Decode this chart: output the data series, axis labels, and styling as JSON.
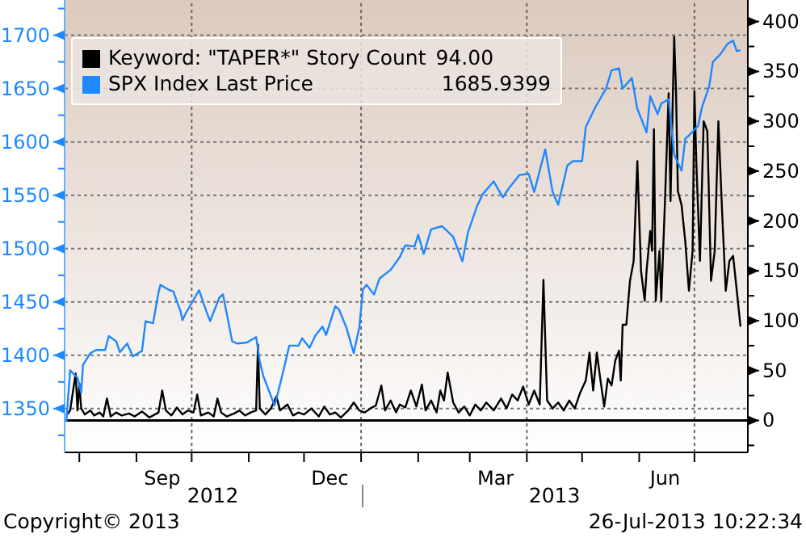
{
  "chart_data": {
    "type": "line",
    "legend": "top left",
    "grid": "y",
    "line_style": "solid",
    "marker": "none",
    "xlim": [
      "2012-07-24",
      "2013-07-30"
    ],
    "xticks": [
      {
        "value": "2012-08-01",
        "label": null
      },
      {
        "value": "2012-09-01",
        "label": null
      },
      {
        "value": "2012-09-15",
        "label": "Sep"
      },
      {
        "value": "2012-10-01",
        "label": null
      },
      {
        "value": "2012-11-01",
        "label": null
      },
      {
        "value": "2012-12-01",
        "label": null
      },
      {
        "value": "2012-12-15",
        "label": "Dec"
      },
      {
        "value": "2013-01-01",
        "label": null
      },
      {
        "value": "2013-02-01",
        "label": null
      },
      {
        "value": "2013-03-01",
        "label": null
      },
      {
        "value": "2013-03-15",
        "label": "Mar"
      },
      {
        "value": "2013-04-01",
        "label": null
      },
      {
        "value": "2013-05-01",
        "label": null
      },
      {
        "value": "2013-06-01",
        "label": null
      },
      {
        "value": "2013-06-15",
        "label": "Jun"
      },
      {
        "value": "2013-07-01",
        "label": null
      }
    ],
    "ylim": [
      1309,
      1733
    ],
    "yticks": [
      {
        "value": 1325,
        "label": null
      },
      1350,
      {
        "value": 1375,
        "label": null
      },
      1400,
      {
        "value": 1425,
        "label": null
      },
      1450,
      {
        "value": 1475,
        "label": null
      },
      1500,
      {
        "value": 1525,
        "label": null
      },
      1550,
      {
        "value": 1575,
        "label": null
      },
      1600,
      {
        "value": 1625,
        "label": null
      },
      1650,
      {
        "value": 1675,
        "label": null
      },
      1700,
      {
        "value": 1725,
        "label": null
      }
    ],
    "y2lim": [
      -32,
      421.6
    ],
    "y2ticks": [
      {
        "value": -25,
        "label": null
      },
      0,
      {
        "value": 25,
        "label": null
      },
      50,
      {
        "value": 75,
        "label": null
      },
      100,
      {
        "value": 125,
        "label": null
      },
      150,
      {
        "value": 175,
        "label": null
      },
      200,
      {
        "value": 225,
        "label": null
      },
      250,
      {
        "value": 275,
        "label": null
      },
      300,
      {
        "value": 325,
        "label": null
      },
      350,
      {
        "value": 375,
        "label": null
      },
      400
    ],
    "ref_lines": [
      {
        "axis": "x",
        "value": "2012-10-01",
        "label": null,
        "color": "#666666",
        "line_style": "dotted"
      },
      {
        "axis": "x",
        "value": "2013-01-01",
        "label": null,
        "color": "#666666",
        "line_style": "dotted"
      },
      {
        "axis": "x",
        "value": "2013-04-01",
        "label": null,
        "color": "#666666",
        "line_style": "dotted"
      },
      {
        "axis": "x",
        "value": "2013-07-01",
        "label": null,
        "color": "#666666",
        "line_style": "dotted"
      },
      {
        "axis": "y2",
        "value": 0,
        "label": null,
        "color": "#000000",
        "line_style": "solid"
      }
    ],
    "annotations": [
      "94.00",
      "1685.9399",
      "2012",
      "2013",
      "Copyright© 2013",
      "26-Jul-2013 10:22:34"
    ],
    "series": [
      {
        "name": "Keyword: \"TAPER*\" Story Count",
        "color": "#000000",
        "axis": "y2",
        "x": [
          "2012-07-25",
          "2012-07-27",
          "2012-07-30",
          "2012-07-31",
          "2012-08-01",
          "2012-08-02",
          "2012-08-04",
          "2012-08-07",
          "2012-08-09",
          "2012-08-12",
          "2012-08-14",
          "2012-08-16",
          "2012-08-18",
          "2012-08-21",
          "2012-08-24",
          "2012-08-28",
          "2012-08-31",
          "2012-09-04",
          "2012-09-08",
          "2012-09-11",
          "2012-09-13",
          "2012-09-15",
          "2012-09-17",
          "2012-09-20",
          "2012-09-23",
          "2012-09-26",
          "2012-09-29",
          "2012-10-02",
          "2012-10-04",
          "2012-10-06",
          "2012-10-10",
          "2012-10-13",
          "2012-10-15",
          "2012-10-17",
          "2012-10-20",
          "2012-10-24",
          "2012-10-27",
          "2012-10-30",
          "2012-11-02",
          "2012-11-05",
          "2012-11-06",
          "2012-11-07",
          "2012-11-10",
          "2012-11-13",
          "2012-11-16",
          "2012-11-18",
          "2012-11-22",
          "2012-11-25",
          "2012-11-28",
          "2012-12-01",
          "2012-12-05",
          "2012-12-09",
          "2012-12-12",
          "2012-12-15",
          "2012-12-18",
          "2012-12-21",
          "2012-12-25",
          "2012-12-28",
          "2012-12-31",
          "2013-01-03",
          "2013-01-06",
          "2013-01-09",
          "2013-01-12",
          "2013-01-14",
          "2013-01-17",
          "2013-01-20",
          "2013-01-22",
          "2013-01-25",
          "2013-01-28",
          "2013-01-31",
          "2013-02-03",
          "2013-02-05",
          "2013-02-08",
          "2013-02-11",
          "2013-02-13",
          "2013-02-15",
          "2013-02-17",
          "2013-02-20",
          "2013-02-23",
          "2013-02-26",
          "2013-03-01",
          "2013-03-04",
          "2013-03-07",
          "2013-03-10",
          "2013-03-14",
          "2013-03-18",
          "2013-03-21",
          "2013-03-24",
          "2013-03-27",
          "2013-03-30",
          "2013-04-02",
          "2013-04-05",
          "2013-04-08",
          "2013-04-10",
          "2013-04-12",
          "2013-04-15",
          "2013-04-18",
          "2013-04-21",
          "2013-04-24",
          "2013-04-27",
          "2013-04-30",
          "2013-05-03",
          "2013-05-05",
          "2013-05-07",
          "2013-05-09",
          "2013-05-11",
          "2013-05-13",
          "2013-05-15",
          "2013-05-17",
          "2013-05-19",
          "2013-05-21",
          "2013-05-22",
          "2013-05-23",
          "2013-05-25",
          "2013-05-27",
          "2013-05-29",
          "2013-05-31",
          "2013-06-02",
          "2013-06-04",
          "2013-06-05",
          "2013-06-07",
          "2013-06-08",
          "2013-06-09",
          "2013-06-10",
          "2013-06-12",
          "2013-06-13",
          "2013-06-15",
          "2013-06-17",
          "2013-06-18",
          "2013-06-20",
          "2013-06-21",
          "2013-06-22",
          "2013-06-24",
          "2013-06-26",
          "2013-06-28",
          "2013-06-30",
          "2013-07-01",
          "2013-07-02",
          "2013-07-04",
          "2013-07-06",
          "2013-07-08",
          "2013-07-10",
          "2013-07-12",
          "2013-07-14",
          "2013-07-16",
          "2013-07-18",
          "2013-07-20",
          "2013-07-22",
          "2013-07-24",
          "2013-07-26"
        ],
        "values": [
          5,
          10,
          47,
          10,
          37,
          12,
          6,
          10,
          5,
          8,
          4,
          22,
          4,
          8,
          5,
          7,
          4,
          9,
          3,
          6,
          8,
          30,
          10,
          5,
          13,
          6,
          10,
          8,
          26,
          5,
          8,
          4,
          22,
          8,
          4,
          7,
          10,
          5,
          8,
          10,
          76,
          12,
          6,
          12,
          24,
          10,
          16,
          5,
          8,
          6,
          12,
          4,
          14,
          6,
          8,
          3,
          10,
          18,
          10,
          8,
          12,
          15,
          35,
          10,
          20,
          8,
          16,
          13,
          30,
          14,
          36,
          10,
          20,
          8,
          30,
          20,
          48,
          18,
          8,
          14,
          5,
          16,
          10,
          18,
          10,
          22,
          12,
          26,
          20,
          34,
          16,
          30,
          16,
          141,
          20,
          12,
          18,
          10,
          20,
          12,
          28,
          40,
          68,
          30,
          68,
          40,
          14,
          42,
          35,
          60,
          70,
          40,
          96,
          96,
          140,
          160,
          260,
          150,
          120,
          150,
          190,
          170,
          292,
          120,
          170,
          120,
          220,
          328,
          220,
          385,
          330,
          230,
          216,
          180,
          130,
          170,
          330,
          260,
          160,
          300,
          290,
          140,
          170,
          300,
          210,
          130,
          160,
          165,
          130,
          94
        ]
      },
      {
        "name": "SPX Index Last Price",
        "color": "#1e88ff",
        "axis": "y",
        "x": [
          "2012-07-25",
          "2012-07-27",
          "2012-07-31",
          "2012-08-02",
          "2012-08-03",
          "2012-08-07",
          "2012-08-10",
          "2012-08-15",
          "2012-08-17",
          "2012-08-21",
          "2012-08-23",
          "2012-08-27",
          "2012-08-30",
          "2012-09-04",
          "2012-09-06",
          "2012-09-10",
          "2012-09-13",
          "2012-09-14",
          "2012-09-19",
          "2012-09-21",
          "2012-09-25",
          "2012-09-26",
          "2012-09-28",
          "2012-10-05",
          "2012-10-09",
          "2012-10-11",
          "2012-10-16",
          "2012-10-18",
          "2012-10-23",
          "2012-10-26",
          "2012-10-31",
          "2012-11-02",
          "2012-11-05",
          "2012-11-07",
          "2012-11-09",
          "2012-11-15",
          "2012-11-16",
          "2012-11-20",
          "2012-11-23",
          "2012-11-28",
          "2012-11-30",
          "2012-12-04",
          "2012-12-07",
          "2012-12-11",
          "2012-12-13",
          "2012-12-18",
          "2012-12-20",
          "2012-12-24",
          "2012-12-28",
          "2012-12-31",
          "2013-01-02",
          "2013-01-04",
          "2013-01-08",
          "2013-01-11",
          "2013-01-17",
          "2013-01-22",
          "2013-01-25",
          "2013-01-30",
          "2013-02-01",
          "2013-02-04",
          "2013-02-08",
          "2013-02-14",
          "2013-02-20",
          "2013-02-25",
          "2013-02-28",
          "2013-03-05",
          "2013-03-08",
          "2013-03-14",
          "2013-03-19",
          "2013-03-22",
          "2013-03-28",
          "2013-04-02",
          "2013-04-05",
          "2013-04-11",
          "2013-04-15",
          "2013-04-18",
          "2013-04-23",
          "2013-04-26",
          "2013-05-01",
          "2013-05-03",
          "2013-05-08",
          "2013-05-14",
          "2013-05-17",
          "2013-05-21",
          "2013-05-23",
          "2013-05-28",
          "2013-05-31",
          "2013-06-05",
          "2013-06-07",
          "2013-06-11",
          "2013-06-13",
          "2013-06-17",
          "2013-06-20",
          "2013-06-24",
          "2013-06-26",
          "2013-06-28",
          "2013-07-03",
          "2013-07-05",
          "2013-07-09",
          "2013-07-11",
          "2013-07-15",
          "2013-07-19",
          "2013-07-22",
          "2013-07-24",
          "2013-07-26"
        ],
        "values": [
          1338,
          1386,
          1379,
          1365,
          1391,
          1402,
          1405,
          1405,
          1418,
          1413,
          1403,
          1411,
          1399,
          1404,
          1432,
          1430,
          1459,
          1466,
          1461,
          1460,
          1441,
          1433,
          1440,
          1461,
          1441,
          1432,
          1454,
          1457,
          1413,
          1411,
          1412,
          1414,
          1417,
          1394,
          1380,
          1353,
          1359,
          1387,
          1409,
          1409,
          1416,
          1407,
          1418,
          1427,
          1419,
          1446,
          1443,
          1426,
          1402,
          1426,
          1462,
          1466,
          1457,
          1472,
          1480,
          1492,
          1503,
          1502,
          1513,
          1495,
          1518,
          1521,
          1511,
          1488,
          1515,
          1540,
          1551,
          1563,
          1548,
          1556,
          1569,
          1570,
          1553,
          1593,
          1553,
          1541,
          1578,
          1582,
          1582,
          1614,
          1632,
          1650,
          1667,
          1669,
          1650,
          1660,
          1631,
          1609,
          1643,
          1626,
          1636,
          1640,
          1588,
          1573,
          1603,
          1606,
          1615,
          1632,
          1652,
          1675,
          1682,
          1692,
          1695,
          1685,
          1686
        ]
      }
    ]
  }
}
